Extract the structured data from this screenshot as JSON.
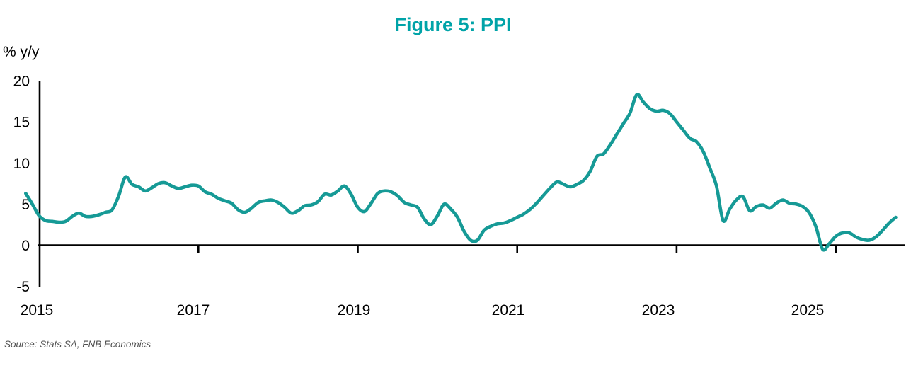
{
  "title": "Figure 5: PPI",
  "y_axis_unit_label": "% y/y",
  "source_note": "Source: Stats SA, FNB Economics",
  "colors": {
    "title_teal": "#00A3A8",
    "line_teal": "#169A96",
    "axis_black": "#000000",
    "source_gray": "#4f4f4f"
  },
  "chart_data": {
    "type": "line",
    "title": "Figure 5: PPI",
    "ylabel": "% y/y",
    "series_name": "PPI",
    "unit": "% y/y",
    "frequency": "monthly",
    "x_start": "2014-11",
    "x_end": "2025-10",
    "x_tick_years": [
      2015,
      2017,
      2019,
      2021,
      2023,
      2025
    ],
    "x_tick_labels": [
      "2015",
      "2017",
      "2019",
      "2021",
      "2023",
      "2025"
    ],
    "y_ticks": [
      20,
      15,
      10,
      5,
      0,
      -5
    ],
    "y_tick_labels": [
      "20",
      "15",
      "10",
      "5",
      "0",
      "-5"
    ],
    "ylim": [
      -5,
      20
    ],
    "grid": false,
    "legend": "none",
    "values": [
      6.3,
      5.0,
      3.6,
      3.0,
      2.9,
      2.8,
      2.9,
      3.5,
      3.9,
      3.5,
      3.5,
      3.7,
      4.0,
      4.3,
      6.0,
      8.3,
      7.4,
      7.1,
      6.6,
      7.0,
      7.5,
      7.6,
      7.2,
      6.9,
      7.1,
      7.3,
      7.2,
      6.5,
      6.2,
      5.7,
      5.4,
      5.1,
      4.3,
      4.0,
      4.5,
      5.2,
      5.4,
      5.5,
      5.2,
      4.6,
      3.9,
      4.2,
      4.8,
      4.9,
      5.3,
      6.2,
      6.1,
      6.6,
      7.2,
      6.2,
      4.6,
      4.1,
      5.1,
      6.3,
      6.6,
      6.5,
      6.0,
      5.2,
      4.9,
      4.6,
      3.2,
      2.5,
      3.6,
      5.0,
      4.4,
      3.4,
      1.7,
      0.6,
      0.6,
      1.8,
      2.3,
      2.6,
      2.7,
      3.0,
      3.4,
      3.8,
      4.4,
      5.2,
      6.1,
      7.0,
      7.7,
      7.4,
      7.1,
      7.4,
      7.9,
      9.0,
      10.8,
      11.1,
      12.2,
      13.5,
      14.8,
      16.1,
      18.3,
      17.4,
      16.6,
      16.3,
      16.4,
      16.0,
      15.0,
      14.0,
      13.0,
      12.6,
      11.4,
      9.4,
      7.2,
      3.0,
      4.4,
      5.5,
      5.9,
      4.2,
      4.7,
      4.9,
      4.5,
      5.1,
      5.5,
      5.1,
      5.0,
      4.7,
      3.9,
      2.2,
      -0.5,
      0.2,
      1.1,
      1.5,
      1.5,
      1.0,
      0.7,
      0.6,
      1.0,
      1.8,
      2.7,
      3.4
    ]
  }
}
